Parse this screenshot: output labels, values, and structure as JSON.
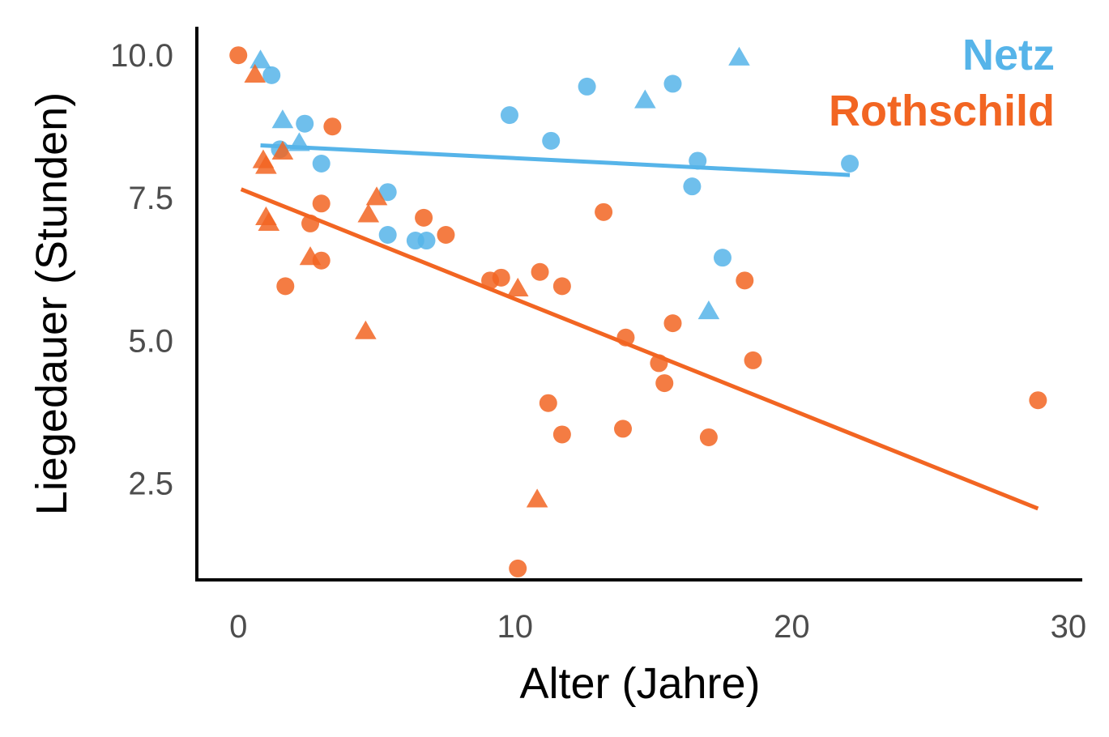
{
  "chart_data": {
    "type": "scatter",
    "title": "",
    "xlabel": "Alter (Jahre)",
    "ylabel": "Liegedauer (Stunden)",
    "xlim": [
      -1.5,
      30.5
    ],
    "ylim": [
      0.8,
      10.5
    ],
    "xticks": [
      0,
      10,
      20,
      30
    ],
    "xtick_labels": [
      "0",
      "10",
      "20",
      "30"
    ],
    "yticks": [
      2.5,
      5.0,
      7.5,
      10.0
    ],
    "ytick_labels": [
      "2.5",
      "5.0",
      "7.5",
      "10.0"
    ],
    "grid": false,
    "legend_position": "top-right",
    "series": [
      {
        "name": "Netz",
        "color": "#56B4E9",
        "points": [
          {
            "x": 0.8,
            "y": 9.9,
            "shape": "triangle"
          },
          {
            "x": 1.2,
            "y": 9.65,
            "shape": "circle"
          },
          {
            "x": 1.6,
            "y": 8.85,
            "shape": "triangle"
          },
          {
            "x": 2.4,
            "y": 8.8,
            "shape": "circle"
          },
          {
            "x": 1.5,
            "y": 8.35,
            "shape": "circle"
          },
          {
            "x": 2.2,
            "y": 8.45,
            "shape": "triangle"
          },
          {
            "x": 3.0,
            "y": 8.1,
            "shape": "circle"
          },
          {
            "x": 5.4,
            "y": 7.6,
            "shape": "circle"
          },
          {
            "x": 5.4,
            "y": 6.85,
            "shape": "circle"
          },
          {
            "x": 6.4,
            "y": 6.75,
            "shape": "circle"
          },
          {
            "x": 6.8,
            "y": 6.75,
            "shape": "circle"
          },
          {
            "x": 9.8,
            "y": 8.95,
            "shape": "circle"
          },
          {
            "x": 11.3,
            "y": 8.5,
            "shape": "circle"
          },
          {
            "x": 12.6,
            "y": 9.45,
            "shape": "circle"
          },
          {
            "x": 14.7,
            "y": 9.2,
            "shape": "triangle"
          },
          {
            "x": 15.7,
            "y": 9.5,
            "shape": "circle"
          },
          {
            "x": 16.6,
            "y": 8.15,
            "shape": "circle"
          },
          {
            "x": 16.4,
            "y": 7.7,
            "shape": "circle"
          },
          {
            "x": 17.5,
            "y": 6.45,
            "shape": "circle"
          },
          {
            "x": 17.0,
            "y": 5.5,
            "shape": "triangle"
          },
          {
            "x": 18.1,
            "y": 9.95,
            "shape": "triangle"
          },
          {
            "x": 22.1,
            "y": 8.1,
            "shape": "circle"
          }
        ],
        "trend": {
          "x": [
            0.8,
            22.1
          ],
          "y": [
            8.42,
            7.9
          ]
        }
      },
      {
        "name": "Rothschild",
        "color": "#F26522",
        "points": [
          {
            "x": 0.0,
            "y": 10.0,
            "shape": "circle"
          },
          {
            "x": 0.6,
            "y": 9.65,
            "shape": "triangle"
          },
          {
            "x": 0.9,
            "y": 8.15,
            "shape": "triangle"
          },
          {
            "x": 1.0,
            "y": 8.05,
            "shape": "triangle"
          },
          {
            "x": 1.6,
            "y": 8.3,
            "shape": "triangle"
          },
          {
            "x": 3.4,
            "y": 8.75,
            "shape": "circle"
          },
          {
            "x": 1.0,
            "y": 7.15,
            "shape": "triangle"
          },
          {
            "x": 1.1,
            "y": 7.05,
            "shape": "triangle"
          },
          {
            "x": 2.6,
            "y": 7.05,
            "shape": "circle"
          },
          {
            "x": 3.0,
            "y": 7.4,
            "shape": "circle"
          },
          {
            "x": 2.6,
            "y": 6.45,
            "shape": "triangle"
          },
          {
            "x": 3.0,
            "y": 6.4,
            "shape": "circle"
          },
          {
            "x": 1.7,
            "y": 5.95,
            "shape": "circle"
          },
          {
            "x": 4.7,
            "y": 7.2,
            "shape": "triangle"
          },
          {
            "x": 5.0,
            "y": 7.5,
            "shape": "triangle"
          },
          {
            "x": 4.6,
            "y": 5.15,
            "shape": "triangle"
          },
          {
            "x": 6.7,
            "y": 7.15,
            "shape": "circle"
          },
          {
            "x": 7.5,
            "y": 6.85,
            "shape": "circle"
          },
          {
            "x": 9.1,
            "y": 6.05,
            "shape": "circle"
          },
          {
            "x": 9.5,
            "y": 6.1,
            "shape": "circle"
          },
          {
            "x": 10.1,
            "y": 5.9,
            "shape": "triangle"
          },
          {
            "x": 10.9,
            "y": 6.2,
            "shape": "circle"
          },
          {
            "x": 11.7,
            "y": 5.95,
            "shape": "circle"
          },
          {
            "x": 13.2,
            "y": 7.25,
            "shape": "circle"
          },
          {
            "x": 14.0,
            "y": 5.05,
            "shape": "circle"
          },
          {
            "x": 15.7,
            "y": 5.3,
            "shape": "circle"
          },
          {
            "x": 15.2,
            "y": 4.6,
            "shape": "circle"
          },
          {
            "x": 15.4,
            "y": 4.25,
            "shape": "circle"
          },
          {
            "x": 18.3,
            "y": 6.05,
            "shape": "circle"
          },
          {
            "x": 18.6,
            "y": 4.65,
            "shape": "circle"
          },
          {
            "x": 11.2,
            "y": 3.9,
            "shape": "circle"
          },
          {
            "x": 11.7,
            "y": 3.35,
            "shape": "circle"
          },
          {
            "x": 13.9,
            "y": 3.45,
            "shape": "circle"
          },
          {
            "x": 17.0,
            "y": 3.3,
            "shape": "circle"
          },
          {
            "x": 10.8,
            "y": 2.2,
            "shape": "triangle"
          },
          {
            "x": 10.1,
            "y": 1.0,
            "shape": "circle"
          },
          {
            "x": 28.9,
            "y": 3.95,
            "shape": "circle"
          }
        ],
        "trend": {
          "x": [
            0.1,
            28.9
          ],
          "y": [
            7.65,
            2.05
          ]
        }
      }
    ]
  }
}
